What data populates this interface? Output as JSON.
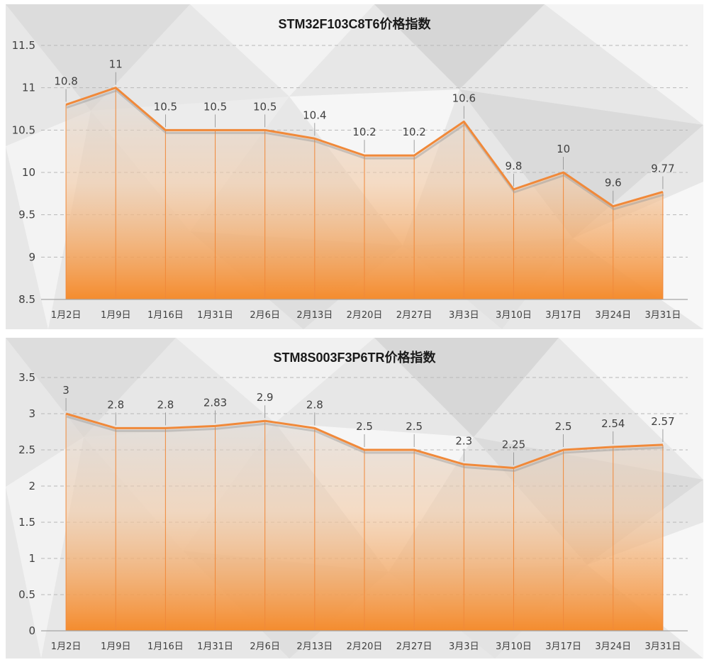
{
  "chart_data": [
    {
      "type": "area",
      "title": "STM32F103C8T6价格指数",
      "categories": [
        "1月2日",
        "1月9日",
        "1月16日",
        "1月31日",
        "2月6日",
        "2月13日",
        "2月20日",
        "2月27日",
        "3月3日",
        "3月10日",
        "3月17日",
        "3月24日",
        "3月31日"
      ],
      "values": [
        10.8,
        11,
        10.5,
        10.5,
        10.5,
        10.4,
        10.2,
        10.2,
        10.6,
        9.8,
        10,
        9.6,
        9.77
      ],
      "data_labels": [
        "10.8",
        "11",
        "10.5",
        "10.5",
        "10.5",
        "10.4",
        "10.2",
        "10.2",
        "10.6",
        "9.8",
        "10",
        "9.6",
        "9.77"
      ],
      "y_ticks": [
        8.5,
        9,
        9.5,
        10,
        10.5,
        11,
        11.5
      ],
      "y_tick_labels": [
        "8.5",
        "9",
        "9.5",
        "10",
        "10.5",
        "11",
        "11.5"
      ],
      "ylim": [
        8.5,
        11.5
      ],
      "xlabel": "",
      "ylabel": "",
      "grid": "horizontal-dashed",
      "legend": "none"
    },
    {
      "type": "area",
      "title": "STM8S003F3P6TR价格指数",
      "categories": [
        "1月2日",
        "1月9日",
        "1月16日",
        "1月31日",
        "2月6日",
        "2月13日",
        "2月20日",
        "2月27日",
        "3月3日",
        "3月10日",
        "3月17日",
        "3月24日",
        "3月31日"
      ],
      "values": [
        3,
        2.8,
        2.8,
        2.83,
        2.9,
        2.8,
        2.5,
        2.5,
        2.3,
        2.25,
        2.5,
        2.54,
        2.57
      ],
      "data_labels": [
        "3",
        "2.8",
        "2.8",
        "2.83",
        "2.9",
        "2.8",
        "2.5",
        "2.5",
        "2.3",
        "2.25",
        "2.5",
        "2.54",
        "2.57"
      ],
      "y_ticks": [
        0,
        0.5,
        1,
        1.5,
        2,
        2.5,
        3,
        3.5
      ],
      "y_tick_labels": [
        "0",
        "0.5",
        "1",
        "1.5",
        "2",
        "2.5",
        "3",
        "3.5"
      ],
      "ylim": [
        0,
        3.5
      ],
      "xlabel": "",
      "ylabel": "",
      "grid": "horizontal-dashed",
      "legend": "none"
    }
  ],
  "colors": {
    "line": "#f0893a",
    "fill_bottom": "#f58a2a",
    "fill_top": "#d9d6d4",
    "grid": "#b8b8b8",
    "axis": "#a6a6a6",
    "text": "#404040",
    "panel_bg": "#e7e7e7"
  }
}
